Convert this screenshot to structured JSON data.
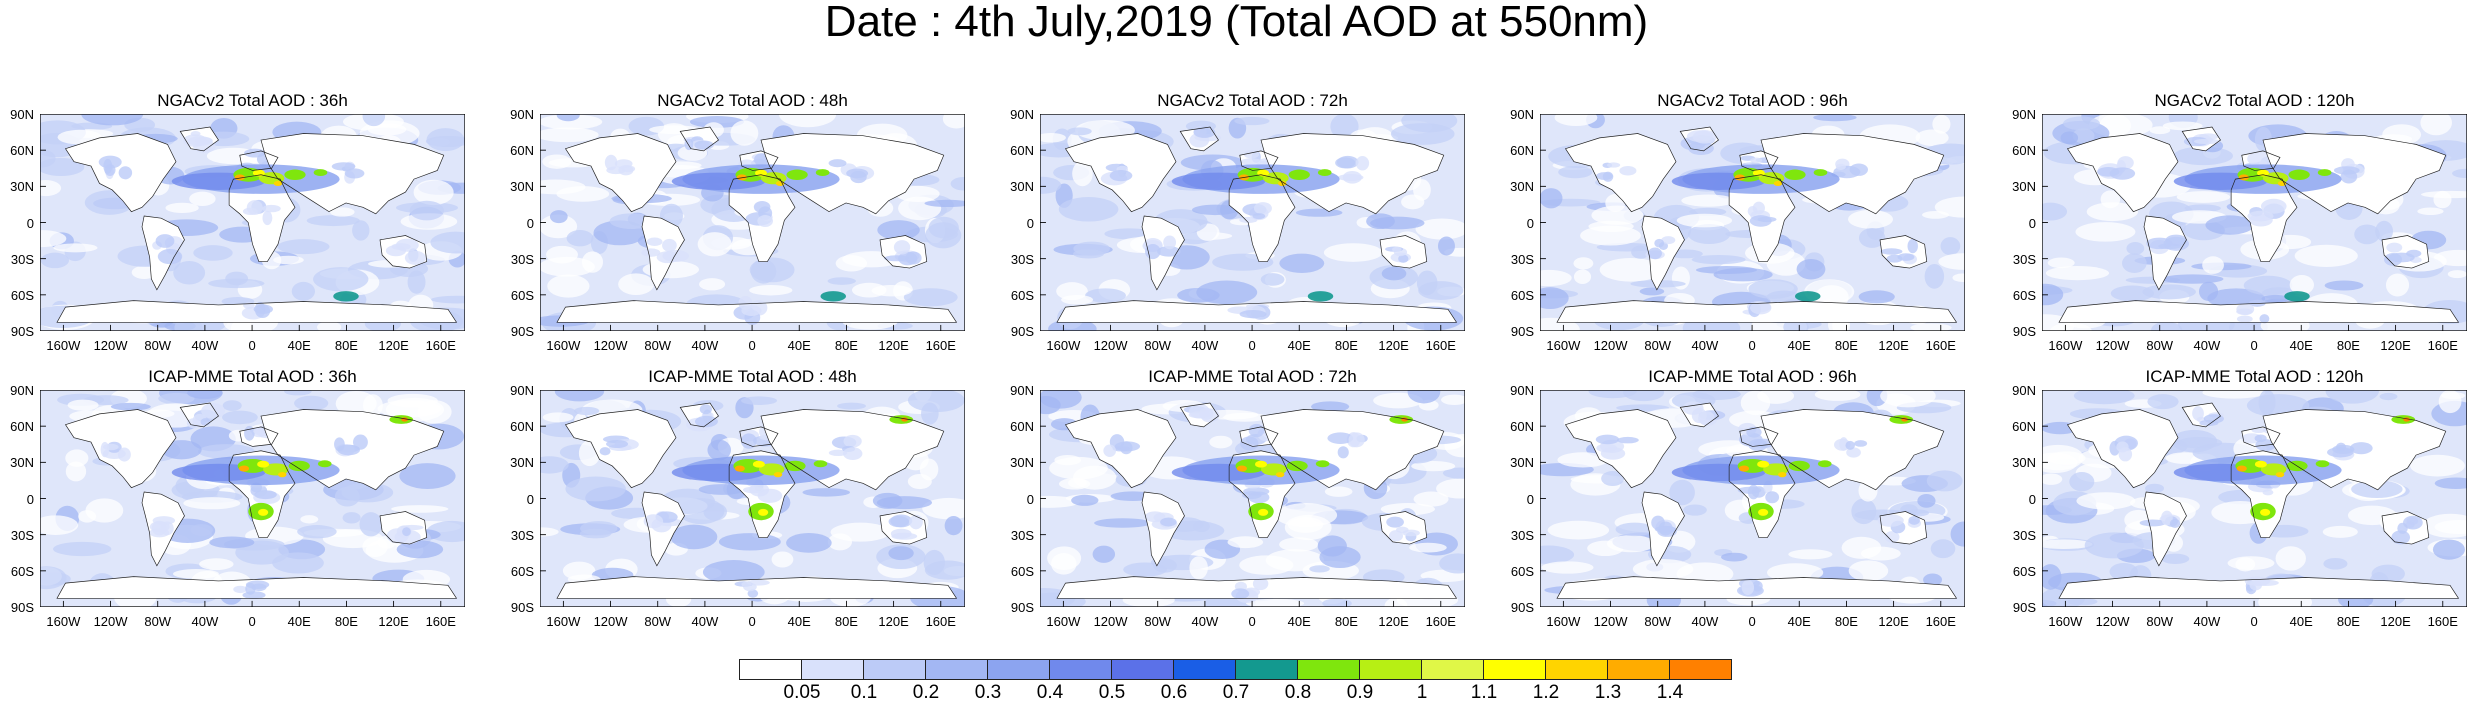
{
  "title": "Date : 4th July,2019 (Total AOD at 550nm)",
  "panels": [
    {
      "label": "NGACv2 Total AOD : 36h",
      "row": 0,
      "col": 0
    },
    {
      "label": "NGACv2 Total AOD : 48h",
      "row": 0,
      "col": 1
    },
    {
      "label": "NGACv2 Total AOD : 72h",
      "row": 0,
      "col": 2
    },
    {
      "label": "NGACv2 Total AOD : 96h",
      "row": 0,
      "col": 3
    },
    {
      "label": "NGACv2 Total AOD : 120h",
      "row": 0,
      "col": 4
    },
    {
      "label": "ICAP-MME Total AOD : 36h",
      "row": 1,
      "col": 0
    },
    {
      "label": "ICAP-MME Total AOD : 48h",
      "row": 1,
      "col": 1
    },
    {
      "label": "ICAP-MME Total AOD : 72h",
      "row": 1,
      "col": 2
    },
    {
      "label": "ICAP-MME Total AOD : 96h",
      "row": 1,
      "col": 3
    },
    {
      "label": "ICAP-MME Total AOD : 120h",
      "row": 1,
      "col": 4
    }
  ],
  "lat_labels": [
    "90N",
    "60N",
    "30N",
    "0",
    "30S",
    "60S",
    "90S"
  ],
  "lon_labels": [
    "160W",
    "120W",
    "80W",
    "40W",
    "0",
    "40E",
    "80E",
    "120E",
    "160E"
  ],
  "colorbar": {
    "labels": [
      "0.05",
      "0.1",
      "0.2",
      "0.3",
      "0.4",
      "0.5",
      "0.6",
      "0.7",
      "0.8",
      "0.9",
      "1",
      "1.1",
      "1.2",
      "1.3",
      "1.4"
    ],
    "colors": [
      "#ffffff",
      "#d9e1fb",
      "#bccbf7",
      "#a3b7f3",
      "#8ca4f0",
      "#7089ec",
      "#5b71e8",
      "#1a5ee6",
      "#13998f",
      "#7fe60d",
      "#b7ef14",
      "#e0f747",
      "#ffff00",
      "#ffd400",
      "#ffac00",
      "#ff8000",
      "#ff2e00"
    ]
  },
  "map_colors": {
    "ocean_base": "#dfe6fa",
    "ocean_mid": "#c3d0f7",
    "land_base": "#ffffff",
    "coast": "#222222"
  }
}
